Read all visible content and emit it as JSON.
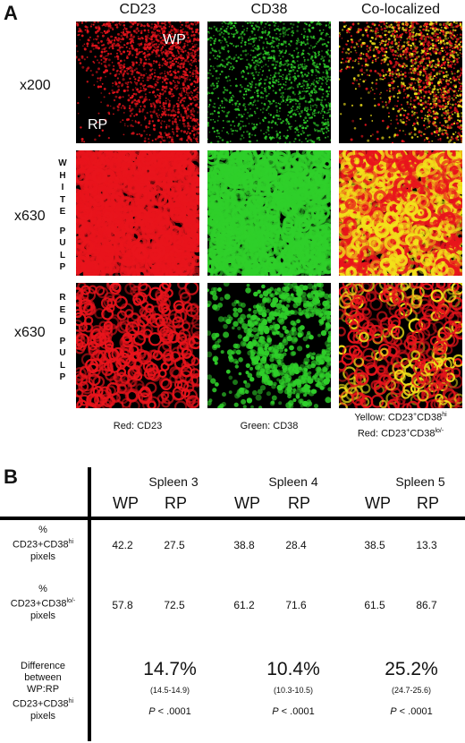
{
  "panel_a": {
    "letter": "A",
    "columns": [
      "CD23",
      "CD38",
      "Co-localized"
    ],
    "rows": [
      {
        "magnification": "x200",
        "side_label": ""
      },
      {
        "magnification": "x630",
        "side_label": "WHITE PULP"
      },
      {
        "magnification": "x630",
        "side_label": "RED PULP"
      }
    ],
    "region_labels": {
      "wp": "WP",
      "rp": "RP"
    },
    "captions": {
      "cd23": "Red: CD23",
      "cd38": "Green: CD38",
      "coloc_line1_prefix": "Yellow: CD23",
      "coloc_line1_sup1": "+",
      "coloc_line1_mid": "CD38",
      "coloc_line1_sup2": "hi",
      "coloc_line2_prefix": "Red: CD23",
      "coloc_line2_sup1": "+",
      "coloc_line2_mid": "CD38",
      "coloc_line2_sup2": "lo/-"
    },
    "colors": {
      "red": "#e8141c",
      "green": "#2fcf2a",
      "yellow": "#f2e11a"
    }
  },
  "panel_b": {
    "letter": "B",
    "spleens": [
      {
        "name": "Spleen 3",
        "wp": "WP",
        "rp": "RP",
        "hi": {
          "wp": "42.2",
          "rp": "27.5"
        },
        "lo": {
          "wp": "57.8",
          "rp": "72.5"
        },
        "difference": "14.7%",
        "range": "(14.5-14.9)",
        "p_label": "P",
        "p_value": " < .0001"
      },
      {
        "name": "Spleen 4",
        "wp": "WP",
        "rp": "RP",
        "hi": {
          "wp": "38.8",
          "rp": "28.4"
        },
        "lo": {
          "wp": "61.2",
          "rp": "71.6"
        },
        "difference": "10.4%",
        "range": "(10.3-10.5)",
        "p_label": "P",
        "p_value": " < .0001"
      },
      {
        "name": "Spleen 5",
        "wp": "WP",
        "rp": "RP",
        "hi": {
          "wp": "38.5",
          "rp": "13.3"
        },
        "lo": {
          "wp": "61.5",
          "rp": "86.7"
        },
        "difference": "25.2%",
        "range": "(24.7-25.6)",
        "p_label": "P",
        "p_value": " < .0001"
      }
    ],
    "row_labels": {
      "hi_pct": "%",
      "hi_mid": "CD23+CD38",
      "hi_sup": "hi",
      "hi_end": "pixels",
      "lo_pct": "%",
      "lo_mid": "CD23+CD38",
      "lo_sup": "lo/-",
      "lo_end": "pixels",
      "diff_1": "Difference",
      "diff_2": "between",
      "diff_3": "WP:RP",
      "diff_4": "CD23+CD38",
      "diff_sup": "hi",
      "diff_5": "pixels"
    }
  }
}
